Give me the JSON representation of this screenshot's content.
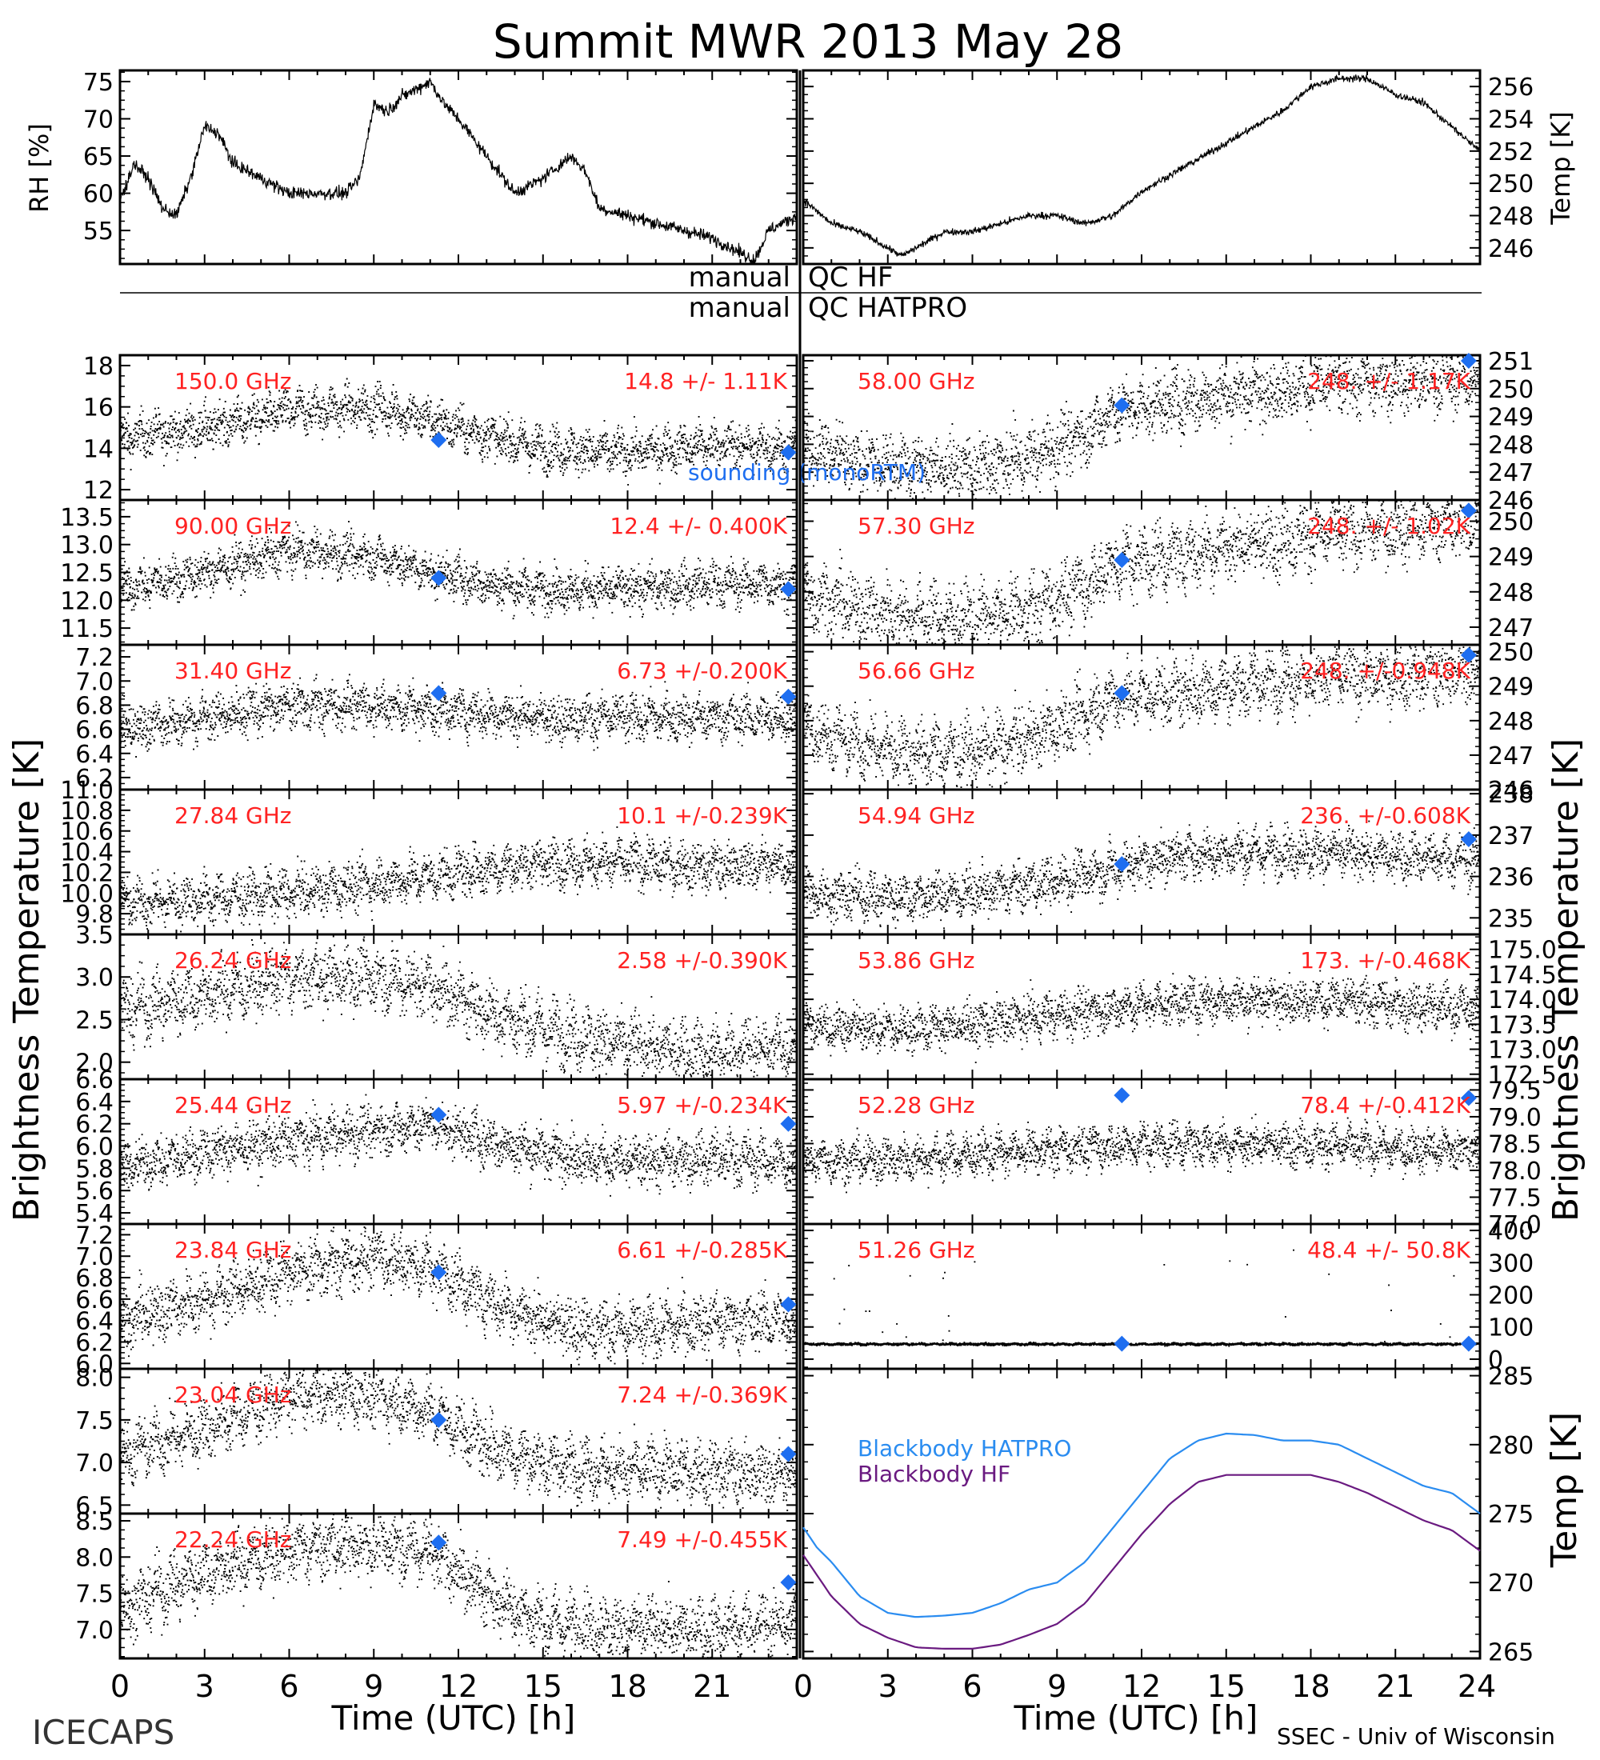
{
  "page": {
    "title": "Summit MWR 2013 May 28",
    "footer_left": "ICECAPS",
    "footer_right": "SSEC - Univ of Wisconsin"
  },
  "qc": {
    "left_hf": "manual",
    "right_hf": "QC HF",
    "left_hatpro": "manual",
    "right_hatpro": "QC HATPRO"
  },
  "labels": {
    "rh_ylabel": "RH [%]",
    "temp_ylabel": "Temp [K]",
    "tb_ylabel_left": "Brightness Temperature [K]",
    "tb_ylabel_right": "Brightness Temperature [K]",
    "bb_ylabel": "Temp [K]",
    "xlabel_left": "Time (UTC) [h]",
    "xlabel_right": "Time (UTC) [h]",
    "sounding_legend": "sounding (monoRTM)",
    "bb_hatpro_legend": "Blackbody HATPRO",
    "bb_hf_legend": "Blackbody HF"
  },
  "colors": {
    "data": "#000000",
    "annotation": "#ff2222",
    "sounding": "#1e6ef0",
    "bb_hatpro": "#2a8cf0",
    "bb_hf": "#6a1a80"
  },
  "chart_data": [
    {
      "id": "rh",
      "type": "line",
      "ylabel": "RH [%]",
      "xlim": [
        0,
        24
      ],
      "ylim": [
        50.5,
        76.5
      ],
      "yticks": [
        55,
        60,
        65,
        70,
        75
      ],
      "x": [
        0,
        0.5,
        1,
        1.5,
        2,
        2.5,
        3,
        3.5,
        4,
        5,
        6,
        7,
        8,
        8.5,
        9,
        9.5,
        10,
        10.5,
        11,
        11.5,
        12,
        13,
        14,
        15,
        16,
        16.5,
        17,
        18,
        19,
        20,
        21,
        22,
        22.5,
        23,
        24
      ],
      "values": [
        59,
        64,
        62,
        58,
        57,
        62,
        69,
        68,
        64,
        62,
        60,
        60,
        60,
        62,
        72,
        71,
        73,
        74,
        75,
        72,
        70,
        65,
        60,
        62,
        65,
        63,
        58,
        57,
        56,
        55,
        54,
        52,
        51,
        55,
        57
      ]
    },
    {
      "id": "temp",
      "type": "line",
      "ylabel": "Temp [K]",
      "xlim": [
        0,
        24
      ],
      "ylim": [
        245,
        257
      ],
      "yticks": [
        246,
        248,
        250,
        252,
        254,
        256
      ],
      "x": [
        0,
        1,
        2,
        3,
        3.5,
        4,
        5,
        6,
        7,
        8,
        9,
        10,
        11,
        12,
        13,
        14,
        15,
        16,
        17,
        18,
        19,
        20,
        21,
        22,
        23,
        24
      ],
      "values": [
        249,
        247.5,
        247,
        246,
        245.5,
        246,
        247,
        247,
        247.5,
        248,
        248,
        247.5,
        248,
        249.5,
        250.5,
        251.5,
        252.5,
        253.5,
        254.5,
        256,
        256.5,
        256.5,
        255.5,
        255,
        253.5,
        252
      ]
    },
    {
      "id": "ch150",
      "type": "scatter",
      "label": "150.0 GHz",
      "stats": "14.8 +/- 1.11K",
      "side": "left",
      "ylim": [
        11.5,
        18.5
      ],
      "yticks": [
        12,
        14,
        16,
        18
      ],
      "x": [
        0,
        3,
        6,
        9,
        11,
        13,
        15,
        18,
        21,
        24
      ],
      "values": [
        14.5,
        15.0,
        15.8,
        16.0,
        15.4,
        14.6,
        14.0,
        13.8,
        14.2,
        14.0
      ],
      "noise": 1.11,
      "sounding": [
        [
          11.3,
          14.4
        ],
        [
          23.7,
          13.8
        ]
      ]
    },
    {
      "id": "ch90",
      "type": "scatter",
      "label": "90.00 GHz",
      "stats": "12.4 +/- 0.400K",
      "side": "left",
      "ylim": [
        11.2,
        13.8
      ],
      "yticks": [
        11.5,
        12.0,
        12.5,
        13.0,
        13.5
      ],
      "x": [
        0,
        3,
        6,
        9,
        11,
        13,
        15,
        18,
        21,
        24
      ],
      "values": [
        12.2,
        12.5,
        12.9,
        12.8,
        12.5,
        12.3,
        12.2,
        12.2,
        12.3,
        12.3
      ],
      "noise": 0.4,
      "sounding": [
        [
          11.3,
          12.4
        ],
        [
          23.7,
          12.2
        ]
      ]
    },
    {
      "id": "ch31",
      "type": "scatter",
      "label": "31.40 GHz",
      "stats": "6.73 +/-0.200K",
      "side": "left",
      "ylim": [
        6.1,
        7.3
      ],
      "yticks": [
        6.2,
        6.4,
        6.6,
        6.8,
        7.0,
        7.2
      ],
      "x": [
        0,
        3,
        6,
        9,
        12,
        15,
        18,
        21,
        24
      ],
      "values": [
        6.6,
        6.7,
        6.8,
        6.8,
        6.75,
        6.7,
        6.7,
        6.7,
        6.7
      ],
      "noise": 0.2,
      "sounding": [
        [
          11.3,
          6.9
        ],
        [
          23.7,
          6.87
        ]
      ]
    },
    {
      "id": "ch27",
      "type": "scatter",
      "label": "27.84 GHz",
      "stats": "10.1 +/-0.239K",
      "side": "left",
      "ylim": [
        9.6,
        11.0
      ],
      "yticks": [
        9.8,
        10.0,
        10.2,
        10.4,
        10.6,
        10.8,
        11.0
      ],
      "x": [
        0,
        3,
        6,
        9,
        12,
        15,
        18,
        21,
        24
      ],
      "values": [
        9.9,
        9.95,
        10.0,
        10.1,
        10.2,
        10.3,
        10.3,
        10.25,
        10.3
      ],
      "noise": 0.239,
      "sounding": []
    },
    {
      "id": "ch26",
      "type": "scatter",
      "label": "26.24 GHz",
      "stats": "2.58 +/-0.390K",
      "side": "left",
      "ylim": [
        1.8,
        3.5
      ],
      "yticks": [
        2.0,
        2.5,
        3.0,
        3.5
      ],
      "x": [
        0,
        3,
        6,
        9,
        11,
        13,
        15,
        18,
        21,
        24
      ],
      "values": [
        2.6,
        2.8,
        3.0,
        3.0,
        2.9,
        2.6,
        2.4,
        2.2,
        2.1,
        2.2
      ],
      "noise": 0.39,
      "sounding": []
    },
    {
      "id": "ch25",
      "type": "scatter",
      "label": "25.44 GHz",
      "stats": "5.97 +/-0.234K",
      "side": "left",
      "ylim": [
        5.3,
        6.6
      ],
      "yticks": [
        5.4,
        5.6,
        5.8,
        6.0,
        6.2,
        6.4,
        6.6
      ],
      "x": [
        0,
        3,
        6,
        9,
        11,
        13,
        15,
        18,
        21,
        24
      ],
      "values": [
        5.8,
        5.95,
        6.05,
        6.15,
        6.2,
        6.05,
        5.95,
        5.85,
        5.9,
        5.85
      ],
      "noise": 0.234,
      "sounding": [
        [
          11.3,
          6.28
        ],
        [
          23.7,
          6.2
        ]
      ]
    },
    {
      "id": "ch23_84",
      "type": "scatter",
      "label": "23.84 GHz",
      "stats": "6.61 +/-0.285K",
      "side": "left",
      "ylim": [
        5.95,
        7.3
      ],
      "yticks": [
        6.0,
        6.2,
        6.4,
        6.6,
        6.8,
        7.0,
        7.2
      ],
      "x": [
        0,
        3,
        6,
        9,
        11,
        13,
        15,
        18,
        21,
        24
      ],
      "values": [
        6.4,
        6.6,
        6.85,
        7.0,
        6.9,
        6.6,
        6.4,
        6.3,
        6.4,
        6.4
      ],
      "noise": 0.285,
      "sounding": [
        [
          11.3,
          6.85
        ],
        [
          23.7,
          6.55
        ]
      ]
    },
    {
      "id": "ch23_04",
      "type": "scatter",
      "label": "23.04 GHz",
      "stats": "7.24 +/-0.369K",
      "side": "left",
      "ylim": [
        6.4,
        8.1
      ],
      "yticks": [
        6.5,
        7.0,
        7.5,
        8.0
      ],
      "x": [
        0,
        3,
        6,
        9,
        11,
        13,
        15,
        18,
        21,
        24
      ],
      "values": [
        7.1,
        7.4,
        7.8,
        7.8,
        7.6,
        7.2,
        7.0,
        6.9,
        6.9,
        6.85
      ],
      "noise": 0.369,
      "sounding": [
        [
          11.3,
          7.5
        ],
        [
          23.7,
          7.1
        ]
      ]
    },
    {
      "id": "ch22",
      "type": "scatter",
      "label": "22.24 GHz",
      "stats": "7.49 +/-0.455K",
      "side": "left",
      "ylim": [
        6.6,
        8.6
      ],
      "yticks": [
        7.0,
        7.5,
        8.0,
        8.5
      ],
      "x": [
        0,
        3,
        6,
        9,
        11,
        13,
        15,
        18,
        21,
        24
      ],
      "values": [
        7.3,
        7.8,
        8.1,
        8.2,
        8.1,
        7.5,
        7.1,
        7.0,
        7.0,
        7.1
      ],
      "noise": 0.455,
      "sounding": [
        [
          11.3,
          8.2
        ],
        [
          23.7,
          7.65
        ]
      ]
    },
    {
      "id": "ch58",
      "type": "scatter",
      "label": "58.00 GHz",
      "stats": "248. +/- 1.17K",
      "side": "right",
      "ylim": [
        246,
        251.2
      ],
      "yticks": [
        246,
        247,
        248,
        249,
        250,
        251
      ],
      "x": [
        0,
        2,
        4,
        6,
        8,
        10,
        11,
        13,
        15,
        17,
        19,
        21,
        24
      ],
      "values": [
        248.0,
        247.4,
        247.2,
        247.1,
        247.5,
        248.4,
        249.2,
        249.5,
        249.8,
        250.0,
        250.2,
        250.3,
        250.4
      ],
      "noise": 1.17,
      "sounding": [
        [
          11.3,
          249.4
        ],
        [
          23.6,
          251.0
        ]
      ]
    },
    {
      "id": "ch57",
      "type": "scatter",
      "label": "57.30 GHz",
      "stats": "248. +/- 1.02K",
      "side": "right",
      "ylim": [
        246.5,
        250.6
      ],
      "yticks": [
        247,
        248,
        249,
        250
      ],
      "x": [
        0,
        2,
        4,
        6,
        8,
        10,
        11,
        13,
        15,
        17,
        19,
        21,
        24
      ],
      "values": [
        248.0,
        247.5,
        247.3,
        247.2,
        247.5,
        248.2,
        248.8,
        249.0,
        249.3,
        249.5,
        249.7,
        249.8,
        250.0
      ],
      "noise": 1.02,
      "sounding": [
        [
          11.3,
          248.9
        ],
        [
          23.6,
          250.3
        ]
      ]
    },
    {
      "id": "ch56",
      "type": "scatter",
      "label": "56.66 GHz",
      "stats": "248. +/-0.948K",
      "side": "right",
      "ylim": [
        246,
        250.2
      ],
      "yticks": [
        246,
        247,
        248,
        249,
        250
      ],
      "x": [
        0,
        2,
        4,
        6,
        8,
        10,
        11,
        13,
        15,
        17,
        19,
        21,
        24
      ],
      "values": [
        247.8,
        247.3,
        247.1,
        247.1,
        247.5,
        248.2,
        248.7,
        248.8,
        249.0,
        249.2,
        249.3,
        249.3,
        249.5
      ],
      "noise": 0.948,
      "sounding": [
        [
          11.3,
          248.8
        ],
        [
          23.6,
          249.9
        ]
      ]
    },
    {
      "id": "ch54",
      "type": "scatter",
      "label": "54.94 GHz",
      "stats": "236. +/-0.608K",
      "side": "right",
      "ylim": [
        234.6,
        238.1
      ],
      "yticks": [
        235,
        236,
        237,
        238
      ],
      "x": [
        0,
        3,
        6,
        9,
        11,
        13,
        15,
        18,
        21,
        24
      ],
      "values": [
        235.6,
        235.5,
        235.6,
        235.9,
        236.2,
        236.5,
        236.6,
        236.6,
        236.5,
        236.4
      ],
      "noise": 0.608,
      "sounding": [
        [
          11.3,
          236.3
        ],
        [
          23.6,
          236.9
        ]
      ]
    },
    {
      "id": "ch53",
      "type": "scatter",
      "label": "53.86 GHz",
      "stats": "173. +/-0.468K",
      "side": "right",
      "ylim": [
        172.4,
        175.3
      ],
      "yticks": [
        172.5,
        173.0,
        173.5,
        174.0,
        174.5,
        175.0
      ],
      "x": [
        0,
        3,
        6,
        9,
        12,
        15,
        18,
        21,
        24
      ],
      "values": [
        173.5,
        173.4,
        173.5,
        173.7,
        173.9,
        174.0,
        174.0,
        173.9,
        173.8
      ],
      "noise": 0.468,
      "sounding": []
    },
    {
      "id": "ch52",
      "type": "scatter",
      "label": "52.28 GHz",
      "stats": "78.4 +/-0.412K",
      "side": "right",
      "ylim": [
        77.0,
        79.7
      ],
      "yticks": [
        77.0,
        77.5,
        78.0,
        78.5,
        79.0,
        79.5
      ],
      "x": [
        0,
        3,
        6,
        9,
        12,
        15,
        18,
        21,
        24
      ],
      "values": [
        78.2,
        78.2,
        78.3,
        78.4,
        78.5,
        78.5,
        78.5,
        78.4,
        78.4
      ],
      "noise": 0.412,
      "sounding": [
        [
          11.3,
          79.4
        ],
        [
          23.6,
          79.35
        ]
      ]
    },
    {
      "id": "ch51",
      "type": "scatter",
      "label": "51.26 GHz",
      "stats": "48.4 +/- 50.8K",
      "side": "right",
      "ylim": [
        -30,
        420
      ],
      "yticks": [
        0,
        100,
        200,
        300,
        400
      ],
      "x": [
        0,
        24
      ],
      "values": [
        48,
        48
      ],
      "noise": 4,
      "spikes": true,
      "sounding": [
        [
          11.3,
          48
        ],
        [
          23.6,
          48
        ]
      ]
    },
    {
      "id": "blackbody",
      "type": "line",
      "ylabel": "Temp [K]",
      "xlim": [
        0,
        24
      ],
      "ylim": [
        264.5,
        285.5
      ],
      "yticks": [
        265,
        270,
        275,
        280,
        285
      ],
      "x": [
        0,
        0.5,
        1,
        2,
        3,
        4,
        5,
        6,
        7,
        8,
        9,
        10,
        11,
        12,
        13,
        14,
        15,
        16,
        17,
        18,
        19,
        20,
        21,
        22,
        23,
        24
      ],
      "series": [
        {
          "name": "Blackbody HATPRO",
          "values": [
            274,
            272.5,
            271.5,
            269,
            267.8,
            267.5,
            267.6,
            267.8,
            268.5,
            269.5,
            270,
            271.5,
            274,
            276.5,
            279,
            280.3,
            280.8,
            280.7,
            280.3,
            280.3,
            280,
            279,
            278,
            277,
            276.5,
            275
          ]
        },
        {
          "name": "Blackbody HF",
          "values": [
            272,
            270.5,
            269,
            267,
            266,
            265.3,
            265.2,
            265.2,
            265.5,
            266.2,
            267,
            268.5,
            271,
            273.5,
            275.7,
            277.3,
            277.8,
            277.8,
            277.8,
            277.8,
            277.3,
            276.5,
            275.5,
            274.5,
            273.8,
            272.3
          ]
        }
      ]
    }
  ],
  "x_axis": {
    "ticks_left": [
      "0",
      "3",
      "6",
      "9",
      "12",
      "15",
      "18",
      "21"
    ],
    "ticks_right": [
      "0",
      "3",
      "6",
      "9",
      "12",
      "15",
      "18",
      "21",
      "24"
    ]
  }
}
